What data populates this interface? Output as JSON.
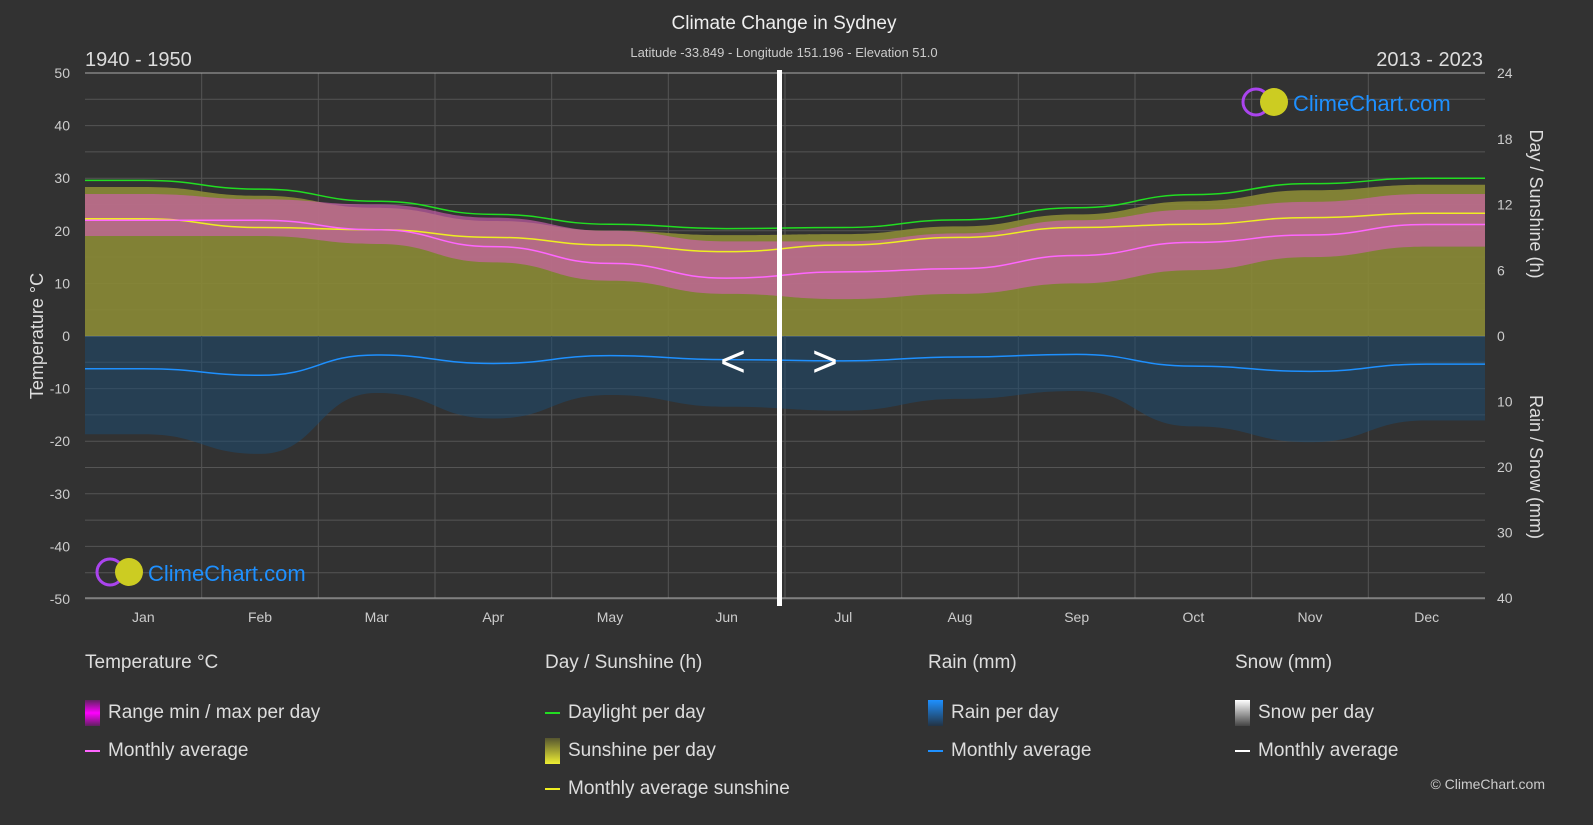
{
  "title": "Climate Change in Sydney",
  "subtitle": "Latitude -33.849 - Longitude 151.196 - Elevation 51.0",
  "period_left": "1940 - 1950",
  "period_right": "2013 - 2023",
  "nav": {
    "prev": "<",
    "next": ">"
  },
  "watermark": "ClimeChart.com",
  "copyright": "© ClimeChart.com",
  "colors": {
    "background": "#323232",
    "temp_avg": "#ff66ff",
    "temp_range": "#e066c0",
    "daylight": "#22dd22",
    "sunshine_avg": "#eeee22",
    "sunshine": "#a0a030",
    "rain": "#1e90ff",
    "brand": "#1e90ff"
  },
  "chart_data": {
    "type": "line",
    "categories": [
      "Jan",
      "Feb",
      "Mar",
      "Apr",
      "May",
      "Jun",
      "Jul",
      "Aug",
      "Sep",
      "Oct",
      "Nov",
      "Dec"
    ],
    "yaxis_left": {
      "label": "Temperature °C",
      "range": [
        -50,
        50
      ],
      "ticks": [
        "50",
        "40",
        "30",
        "20",
        "10",
        "0",
        "-10",
        "-20",
        "-30",
        "-40",
        "-50"
      ]
    },
    "yaxis_right_top": {
      "label": "Day / Sunshine (h)",
      "range": [
        0,
        24
      ],
      "ticks": [
        "24",
        "18",
        "12",
        "6",
        "0"
      ]
    },
    "yaxis_right_bottom": {
      "label": "Rain / Snow (mm)",
      "range": [
        0,
        40
      ],
      "ticks": [
        "10",
        "20",
        "30",
        "40"
      ]
    },
    "grid": true,
    "series": [
      {
        "name": "Monthly average",
        "group": "Temperature °C",
        "values": [
          22.0,
          22.0,
          20.2,
          17.0,
          13.8,
          11.0,
          12.2,
          12.8,
          15.3,
          17.8,
          19.2,
          21.2
        ]
      },
      {
        "name": "Range min / max per day",
        "group": "Temperature °C",
        "max": [
          27,
          26,
          25,
          22.5,
          20,
          18,
          18,
          19.5,
          22,
          24,
          25.5,
          27
        ],
        "min": [
          19,
          19,
          17.5,
          14,
          10.5,
          8,
          7,
          8,
          10,
          12.5,
          15,
          17
        ]
      },
      {
        "name": "Daylight per day",
        "group": "Day / Sunshine (h)",
        "values": [
          14.2,
          13.4,
          12.3,
          11.1,
          10.2,
          9.8,
          9.9,
          10.6,
          11.7,
          12.9,
          13.9,
          14.4
        ]
      },
      {
        "name": "Monthly average sunshine",
        "group": "Day / Sunshine (h)",
        "values": [
          10.7,
          9.9,
          9.7,
          9.0,
          8.3,
          7.7,
          8.3,
          9.0,
          9.9,
          10.2,
          10.8,
          11.2
        ]
      },
      {
        "name": "Monthly average",
        "group": "Rain (mm)",
        "values": [
          5.0,
          6.0,
          2.9,
          4.2,
          3.0,
          3.6,
          3.8,
          3.2,
          2.8,
          4.6,
          5.4,
          4.3
        ]
      }
    ]
  },
  "legend": {
    "temperature": {
      "title": "Temperature °C",
      "range": "Range min / max per day",
      "avg": "Monthly average"
    },
    "sun": {
      "title": "Day / Sunshine (h)",
      "daylight": "Daylight per day",
      "sunshine": "Sunshine per day",
      "avg": "Monthly average sunshine"
    },
    "rain": {
      "title": "Rain (mm)",
      "per_day": "Rain per day",
      "avg": "Monthly average"
    },
    "snow": {
      "title": "Snow (mm)",
      "per_day": "Snow per day",
      "avg": "Monthly average"
    }
  }
}
